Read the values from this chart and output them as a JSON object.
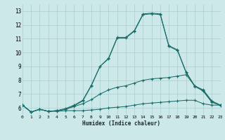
{
  "xlabel": "Humidex (Indice chaleur)",
  "bg_color": "#cce8e8",
  "line_color": "#1a6e6a",
  "grid_color": "#aacece",
  "xlim": [
    0,
    23
  ],
  "ylim": [
    5.5,
    13.5
  ],
  "xticks": [
    0,
    1,
    2,
    3,
    4,
    5,
    6,
    7,
    8,
    9,
    10,
    11,
    12,
    13,
    14,
    15,
    16,
    17,
    18,
    19,
    20,
    21,
    22,
    23
  ],
  "yticks": [
    6,
    7,
    8,
    9,
    10,
    11,
    12,
    13
  ],
  "line1_x": [
    0,
    1,
    2,
    3,
    4,
    5,
    6,
    7,
    8,
    9,
    10,
    11,
    12,
    13,
    14,
    15,
    16,
    17,
    18,
    19,
    20,
    21,
    22,
    23
  ],
  "line1_y": [
    6.2,
    5.7,
    5.9,
    5.75,
    5.75,
    5.8,
    5.8,
    5.8,
    5.85,
    5.9,
    6.0,
    6.05,
    6.1,
    6.2,
    6.3,
    6.35,
    6.4,
    6.45,
    6.5,
    6.55,
    6.55,
    6.3,
    6.2,
    6.2
  ],
  "line2_x": [
    0,
    1,
    2,
    3,
    4,
    5,
    6,
    7,
    8,
    9,
    10,
    11,
    12,
    13,
    14,
    15,
    16,
    17,
    18,
    19,
    20,
    21,
    22,
    23
  ],
  "line2_y": [
    6.2,
    5.7,
    5.9,
    5.75,
    5.8,
    5.9,
    6.1,
    6.3,
    6.6,
    7.0,
    7.3,
    7.5,
    7.6,
    7.8,
    8.0,
    8.1,
    8.15,
    8.2,
    8.3,
    8.4,
    7.6,
    7.2,
    6.4,
    6.2
  ],
  "line3_x": [
    0,
    1,
    2,
    3,
    4,
    5,
    6,
    7,
    8,
    9,
    10,
    11,
    12,
    13,
    14,
    15,
    16,
    17,
    18,
    19,
    20,
    21,
    22,
    23
  ],
  "line3_y": [
    6.2,
    5.7,
    5.9,
    5.75,
    5.8,
    5.9,
    6.15,
    6.5,
    7.6,
    9.0,
    9.6,
    11.1,
    11.1,
    11.6,
    12.8,
    12.85,
    12.8,
    10.5,
    10.2,
    8.6,
    7.6,
    7.3,
    6.5,
    6.2
  ],
  "line4_x": [
    0,
    1,
    2,
    3,
    4,
    5,
    6,
    7,
    8,
    9,
    10,
    11,
    12,
    13,
    14,
    15,
    16,
    17,
    18,
    19,
    20,
    21,
    22,
    23
  ],
  "line4_y": [
    6.2,
    5.7,
    5.9,
    5.75,
    5.8,
    5.95,
    6.2,
    6.55,
    7.65,
    9.0,
    9.55,
    11.05,
    11.05,
    11.55,
    12.75,
    12.8,
    12.75,
    10.45,
    10.15,
    8.55,
    7.55,
    7.25,
    6.45,
    6.15
  ]
}
